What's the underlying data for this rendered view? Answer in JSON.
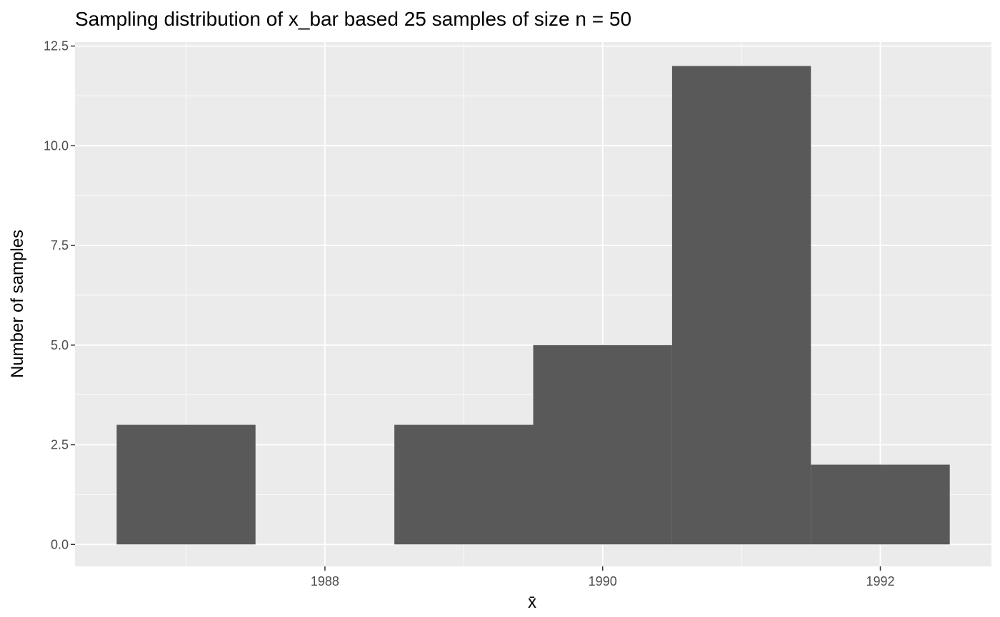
{
  "chart_data": {
    "type": "bar",
    "title": "Sampling distribution of x_bar based 25 samples of size n = 50",
    "xlabel": "x̄",
    "ylabel": "Number of samples",
    "bins": [
      {
        "x_start": 1986.5,
        "x_end": 1987.5,
        "count": 3
      },
      {
        "x_start": 1987.5,
        "x_end": 1988.5,
        "count": 0
      },
      {
        "x_start": 1988.5,
        "x_end": 1989.5,
        "count": 3
      },
      {
        "x_start": 1989.5,
        "x_end": 1990.5,
        "count": 5
      },
      {
        "x_start": 1990.5,
        "x_end": 1991.5,
        "count": 12
      },
      {
        "x_start": 1991.5,
        "x_end": 1992.5,
        "count": 2
      }
    ],
    "xlim": [
      1986.2,
      1992.8
    ],
    "ylim": [
      -0.55,
      12.6
    ],
    "x_ticks": [
      1988,
      1990,
      1992
    ],
    "x_tick_labels": [
      "1988",
      "1990",
      "1992"
    ],
    "y_ticks": [
      0,
      2.5,
      5,
      7.5,
      10,
      12.5
    ],
    "y_tick_labels": [
      "0.0",
      "2.5",
      "5.0",
      "7.5",
      "10.0",
      "12.5"
    ],
    "grid": true,
    "colors": {
      "bar": "#595959",
      "panel": "#ebebeb",
      "grid": "#ffffff"
    }
  }
}
